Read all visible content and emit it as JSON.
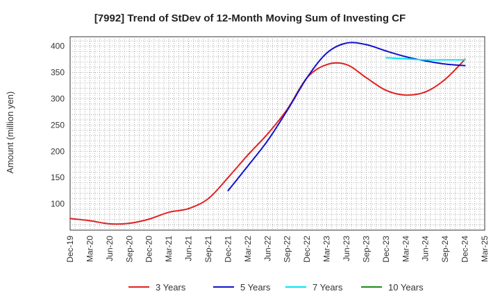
{
  "chart_data": {
    "type": "line",
    "title": "[7992]  Trend of StDev of 12-Month Moving Sum of Investing CF",
    "ylabel": "Amount (million yen)",
    "xlabel": "",
    "ylim": [
      50,
      418
    ],
    "y_ticks": [
      100,
      150,
      200,
      250,
      300,
      350,
      400
    ],
    "x_ticks": [
      "Dec-19",
      "Mar-20",
      "Jun-20",
      "Sep-20",
      "Dec-20",
      "Mar-21",
      "Jun-21",
      "Sep-21",
      "Dec-21",
      "Mar-22",
      "Jun-22",
      "Sep-22",
      "Dec-22",
      "Mar-23",
      "Jun-23",
      "Sep-23",
      "Dec-23",
      "Mar-24",
      "Jun-24",
      "Sep-24",
      "Dec-24",
      "Mar-25"
    ],
    "grid": true,
    "legend_position": "bottom",
    "series": [
      {
        "name": "3 Years",
        "color": "#e02020",
        "values": [
          [
            "Dec-19",
            72
          ],
          [
            "Mar-20",
            68
          ],
          [
            "Jun-20",
            62
          ],
          [
            "Sep-20",
            63
          ],
          [
            "Dec-20",
            71
          ],
          [
            "Mar-21",
            84
          ],
          [
            "Jun-21",
            91
          ],
          [
            "Sep-21",
            110
          ],
          [
            "Dec-21",
            150
          ],
          [
            "Mar-22",
            193
          ],
          [
            "Jun-22",
            233
          ],
          [
            "Sep-22",
            280
          ],
          [
            "Dec-22",
            340
          ],
          [
            "Mar-23",
            365
          ],
          [
            "Jun-23",
            365
          ],
          [
            "Sep-23",
            340
          ],
          [
            "Dec-23",
            316
          ],
          [
            "Mar-24",
            307
          ],
          [
            "Jun-24",
            313
          ],
          [
            "Sep-24",
            337
          ],
          [
            "Dec-24",
            375
          ]
        ]
      },
      {
        "name": "5 Years",
        "color": "#1010cc",
        "values": [
          [
            "Dec-21",
            125
          ],
          [
            "Mar-22",
            172
          ],
          [
            "Jun-22",
            220
          ],
          [
            "Sep-22",
            278
          ],
          [
            "Dec-22",
            340
          ],
          [
            "Mar-23",
            387
          ],
          [
            "Jun-23",
            406
          ],
          [
            "Sep-23",
            403
          ],
          [
            "Dec-23",
            391
          ],
          [
            "Mar-24",
            380
          ],
          [
            "Jun-24",
            372
          ],
          [
            "Sep-24",
            366
          ],
          [
            "Dec-24",
            363
          ]
        ]
      },
      {
        "name": "7 Years",
        "color": "#00e5ee",
        "values": [
          [
            "Dec-23",
            378
          ],
          [
            "Mar-24",
            376
          ],
          [
            "Jun-24",
            374
          ],
          [
            "Sep-24",
            374
          ],
          [
            "Dec-24",
            374
          ]
        ]
      },
      {
        "name": "10 Years",
        "color": "#1a8a1a",
        "values": []
      }
    ]
  }
}
